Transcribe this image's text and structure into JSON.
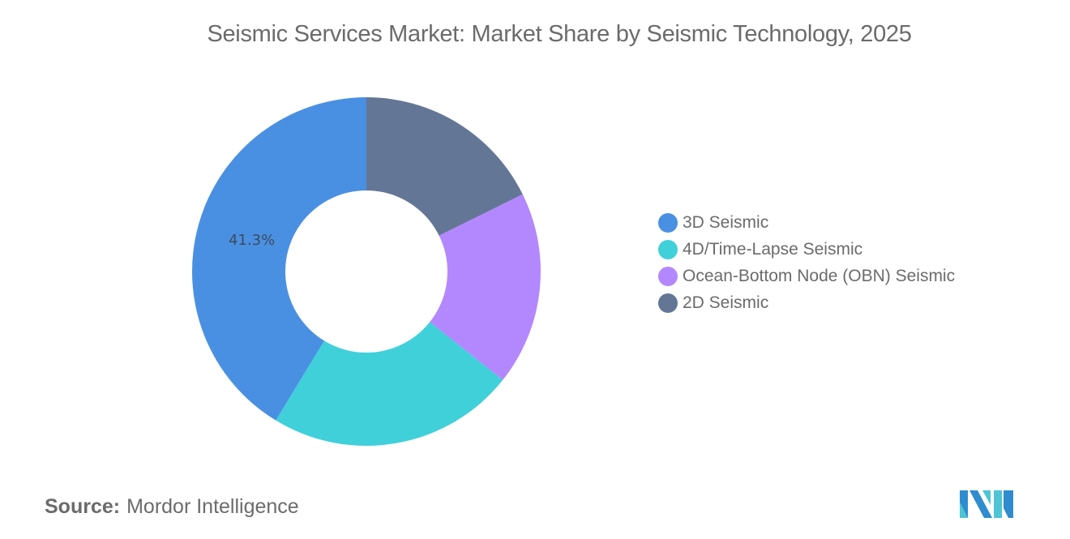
{
  "title": "Seismic Services Market: Market Share by Seismic Technology, 2025",
  "source": {
    "key": "Source:",
    "value": "Mordor Intelligence"
  },
  "legend": [
    {
      "label": "3D Seismic",
      "color": "#4a90e2"
    },
    {
      "label": "4D/Time-Lapse Seismic",
      "color": "#40d0da"
    },
    {
      "label": "Ocean-Bottom Node (OBN) Seismic",
      "color": "#b388ff"
    },
    {
      "label": "2D Seismic",
      "color": "#647696"
    }
  ],
  "labels": {
    "slice_3d": "41.3%"
  },
  "chart_data": {
    "type": "pie",
    "subtype": "donut",
    "title": "Seismic Services Market: Market Share by Seismic Technology, 2025",
    "categories": [
      "3D Seismic",
      "4D/Time-Lapse Seismic",
      "Ocean-Bottom Node (OBN) Seismic",
      "2D Seismic"
    ],
    "values": [
      41.3,
      23.0,
      18.0,
      17.7
    ],
    "units": "%",
    "colors": [
      "#4a90e2",
      "#40d0da",
      "#b388ff",
      "#647696"
    ],
    "data_labels": {
      "3D Seismic": "41.3%"
    },
    "note": "Only 3D Seismic share is labeled; others estimated from slice angles",
    "legend_position": "right",
    "start_angle": "12 o'clock, 2D Seismic first clockwise"
  }
}
